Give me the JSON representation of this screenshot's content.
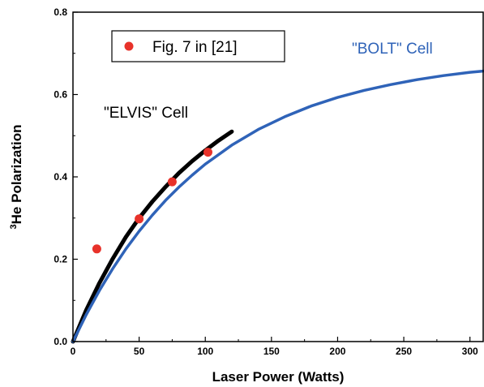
{
  "chart_data": {
    "type": "scatter",
    "xlabel": "Laser Power (Watts)",
    "ylabel_sup": "3",
    "ylabel_main": "He Polarization",
    "xlim": [
      0,
      310
    ],
    "ylim": [
      0,
      0.8
    ],
    "x_ticks": [
      0,
      50,
      100,
      150,
      200,
      250,
      300
    ],
    "y_ticks": [
      0.0,
      0.2,
      0.4,
      0.6,
      0.8
    ],
    "x_tick_labels": [
      "0",
      "50",
      "100",
      "150",
      "200",
      "250",
      "300"
    ],
    "y_tick_labels": [
      "0.0",
      "0.2",
      "0.4",
      "0.6",
      "0.8"
    ],
    "series": [
      {
        "name": "Fig. 7 in [21]",
        "kind": "points",
        "color": "#e8322a",
        "x": [
          18,
          50,
          75,
          102
        ],
        "y": [
          0.225,
          0.298,
          0.388,
          0.46
        ]
      },
      {
        "name": "\"ELVIS\" Cell",
        "kind": "curve",
        "color": "#000000",
        "x": [
          0,
          10,
          20,
          30,
          40,
          50,
          60,
          70,
          80,
          90,
          100,
          110,
          120
        ],
        "y": [
          0.0,
          0.076,
          0.142,
          0.201,
          0.254,
          0.3,
          0.34,
          0.376,
          0.409,
          0.438,
          0.464,
          0.488,
          0.51
        ]
      },
      {
        "name": "\"BOLT\" Cell",
        "kind": "curve",
        "color": "#2f63b8",
        "x": [
          0,
          10,
          20,
          30,
          40,
          50,
          60,
          70,
          80,
          90,
          100,
          120,
          140,
          160,
          180,
          200,
          220,
          240,
          260,
          280,
          300,
          310
        ],
        "y": [
          0.0,
          0.065,
          0.124,
          0.177,
          0.225,
          0.268,
          0.307,
          0.343,
          0.375,
          0.404,
          0.431,
          0.477,
          0.515,
          0.546,
          0.572,
          0.593,
          0.61,
          0.624,
          0.636,
          0.646,
          0.654,
          0.657
        ]
      }
    ],
    "annotations": [
      {
        "text": "\"ELVIS\" Cell",
        "color": "#000000"
      },
      {
        "text": "\"BOLT\" Cell",
        "color": "#2f63b8"
      }
    ],
    "legend": {
      "label": "Fig. 7 in [21]",
      "placement": "top-left"
    },
    "grid": false
  }
}
